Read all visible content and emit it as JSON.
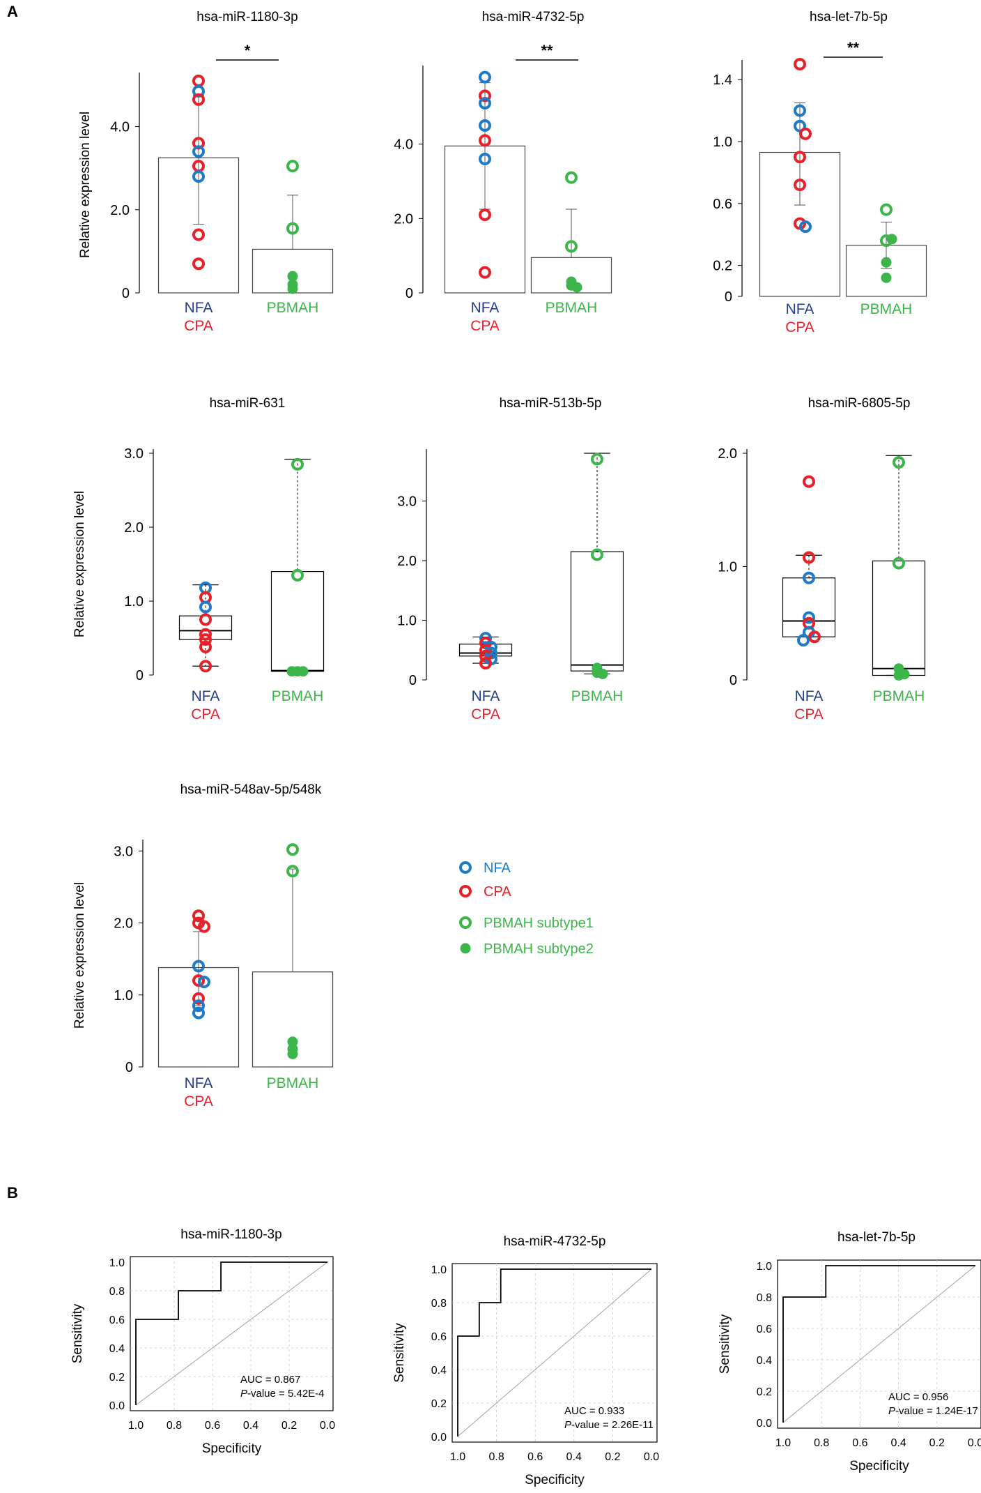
{
  "panels": {
    "A": "A",
    "B": "B"
  },
  "colors": {
    "nfa": "#1f7bc8",
    "cpa": "#e8202a",
    "pbmah": "#3cb54a",
    "group_nfa_text": "#233d8c",
    "axis": "#000000",
    "box_stroke": "#444444",
    "grid": "#c8c8c8"
  },
  "groups": {
    "nfa": "NFA",
    "cpa": "CPA",
    "pbmah": "PBMAH"
  },
  "legend": {
    "nfa": "NFA",
    "cpa": "CPA",
    "sub1": "PBMAH subtype1",
    "sub2": "PBMAH subtype2"
  },
  "chart_data": [
    {
      "id": "bar1",
      "type": "bar",
      "title": "hsa-miR-1180-3p",
      "ylabel": "Relative expression level",
      "ylim": [
        0,
        5.2
      ],
      "yticks": [
        [
          0,
          "0"
        ],
        [
          2,
          "2.0"
        ],
        [
          4,
          "4.0"
        ]
      ],
      "significance": "*",
      "categories": [
        "NFA/CPA",
        "PBMAH"
      ],
      "values": [
        3.25,
        1.05
      ],
      "error_upper": [
        4.75,
        2.35
      ],
      "error_lower": [
        1.65,
        null
      ],
      "points": [
        {
          "g": 0,
          "y": 5.1,
          "t": "cpa"
        },
        {
          "g": 0,
          "y": 4.85,
          "t": "nfa"
        },
        {
          "g": 0,
          "y": 4.65,
          "t": "cpa"
        },
        {
          "g": 0,
          "y": 3.6,
          "t": "cpa"
        },
        {
          "g": 0,
          "y": 3.4,
          "t": "nfa"
        },
        {
          "g": 0,
          "y": 3.05,
          "t": "cpa"
        },
        {
          "g": 0,
          "y": 2.8,
          "t": "nfa"
        },
        {
          "g": 0,
          "y": 1.4,
          "t": "cpa"
        },
        {
          "g": 0,
          "y": 0.7,
          "t": "cpa"
        },
        {
          "g": 1,
          "y": 3.05,
          "t": "sub1"
        },
        {
          "g": 1,
          "y": 1.55,
          "t": "sub1"
        },
        {
          "g": 1,
          "y": 0.4,
          "t": "sub2"
        },
        {
          "g": 1,
          "y": 0.2,
          "t": "sub2"
        },
        {
          "g": 1,
          "y": 0.1,
          "t": "sub2"
        }
      ]
    },
    {
      "id": "bar2",
      "type": "bar",
      "title": "hsa-miR-4732-5p",
      "ylabel": "",
      "ylim": [
        0,
        6.0
      ],
      "yticks": [
        [
          0,
          "0"
        ],
        [
          2,
          "2.0"
        ],
        [
          4,
          "4.0"
        ]
      ],
      "significance": "**",
      "categories": [
        "NFA/CPA",
        "PBMAH"
      ],
      "values": [
        3.95,
        0.95
      ],
      "error_upper": [
        5.65,
        2.25
      ],
      "error_lower": [
        2.25,
        null
      ],
      "points": [
        {
          "g": 0,
          "y": 5.8,
          "t": "nfa"
        },
        {
          "g": 0,
          "y": 5.3,
          "t": "cpa"
        },
        {
          "g": 0,
          "y": 5.1,
          "t": "nfa"
        },
        {
          "g": 0,
          "y": 4.5,
          "t": "nfa"
        },
        {
          "g": 0,
          "y": 4.1,
          "t": "cpa"
        },
        {
          "g": 0,
          "y": 3.6,
          "t": "nfa"
        },
        {
          "g": 0,
          "y": 2.1,
          "t": "cpa"
        },
        {
          "g": 0,
          "y": 0.55,
          "t": "cpa"
        },
        {
          "g": 1,
          "y": 3.1,
          "t": "sub1"
        },
        {
          "g": 1,
          "y": 1.25,
          "t": "sub1"
        },
        {
          "g": 1,
          "y": 0.3,
          "t": "sub2"
        },
        {
          "g": 1,
          "y": 0.2,
          "t": "sub2"
        },
        {
          "g": 1,
          "y": 0.15,
          "t": "sub2"
        }
      ]
    },
    {
      "id": "bar3",
      "type": "bar",
      "title": "hsa-let-7b-5p",
      "ylabel": "",
      "ylim": [
        0,
        1.5
      ],
      "yticks": [
        [
          0,
          "0"
        ],
        [
          0.2,
          "0.2"
        ],
        [
          0.6,
          "0.6"
        ],
        [
          1.0,
          "1.0"
        ],
        [
          1.4,
          "1.4"
        ]
      ],
      "significance": "**",
      "categories": [
        "NFA/CPA",
        "PBMAH"
      ],
      "values": [
        0.93,
        0.33
      ],
      "error_upper": [
        1.25,
        0.48
      ],
      "error_lower": [
        0.59,
        0.18
      ],
      "points": [
        {
          "g": 0,
          "y": 1.5,
          "t": "cpa"
        },
        {
          "g": 0,
          "y": 1.2,
          "t": "nfa"
        },
        {
          "g": 0,
          "y": 1.1,
          "t": "nfa"
        },
        {
          "g": 0,
          "y": 1.05,
          "t": "cpa"
        },
        {
          "g": 0,
          "y": 0.9,
          "t": "cpa"
        },
        {
          "g": 0,
          "y": 0.72,
          "t": "cpa"
        },
        {
          "g": 0,
          "y": 0.47,
          "t": "cpa"
        },
        {
          "g": 0,
          "y": 0.45,
          "t": "nfa"
        },
        {
          "g": 1,
          "y": 0.56,
          "t": "sub1"
        },
        {
          "g": 1,
          "y": 0.36,
          "t": "sub1"
        },
        {
          "g": 1,
          "y": 0.37,
          "t": "sub2"
        },
        {
          "g": 1,
          "y": 0.22,
          "t": "sub2"
        },
        {
          "g": 1,
          "y": 0.12,
          "t": "sub2"
        }
      ]
    },
    {
      "id": "box1",
      "type": "box",
      "title": "hsa-miR-631",
      "ylabel": "Relative expression level",
      "ylim": [
        0,
        3.0
      ],
      "yticks": [
        [
          0,
          "0"
        ],
        [
          1,
          "1.0"
        ],
        [
          2,
          "2.0"
        ],
        [
          3,
          "3.0"
        ]
      ],
      "boxes": [
        {
          "whislo": 0.12,
          "q1": 0.48,
          "med": 0.6,
          "q3": 0.8,
          "whishi": 1.22
        },
        {
          "whislo": 0.05,
          "q1": 0.05,
          "med": 0.06,
          "q3": 1.4,
          "whishi": 2.92
        }
      ],
      "points": [
        {
          "g": 0,
          "y": 1.18,
          "t": "nfa"
        },
        {
          "g": 0,
          "y": 1.05,
          "t": "cpa"
        },
        {
          "g": 0,
          "y": 0.92,
          "t": "nfa"
        },
        {
          "g": 0,
          "y": 0.75,
          "t": "cpa"
        },
        {
          "g": 0,
          "y": 0.55,
          "t": "cpa"
        },
        {
          "g": 0,
          "y": 0.48,
          "t": "cpa"
        },
        {
          "g": 0,
          "y": 0.38,
          "t": "cpa"
        },
        {
          "g": 0,
          "y": 0.12,
          "t": "cpa"
        },
        {
          "g": 1,
          "y": 2.85,
          "t": "sub1"
        },
        {
          "g": 1,
          "y": 1.35,
          "t": "sub1"
        },
        {
          "g": 1,
          "y": 0.05,
          "t": "sub2"
        },
        {
          "g": 1,
          "y": 0.05,
          "t": "sub2"
        },
        {
          "g": 1,
          "y": 0.05,
          "t": "sub2"
        }
      ]
    },
    {
      "id": "box2",
      "type": "box",
      "title": "hsa-miR-513b-5p",
      "ylabel": "",
      "ylim": [
        0,
        3.8
      ],
      "yticks": [
        [
          0,
          "0"
        ],
        [
          1,
          "1.0"
        ],
        [
          2,
          "2.0"
        ],
        [
          3,
          "3.0"
        ]
      ],
      "boxes": [
        {
          "whislo": 0.28,
          "q1": 0.4,
          "med": 0.45,
          "q3": 0.6,
          "whishi": 0.72
        },
        {
          "whislo": 0.1,
          "q1": 0.15,
          "med": 0.25,
          "q3": 2.15,
          "whishi": 3.8
        }
      ],
      "points": [
        {
          "g": 0,
          "y": 0.7,
          "t": "nfa"
        },
        {
          "g": 0,
          "y": 0.62,
          "t": "cpa"
        },
        {
          "g": 0,
          "y": 0.55,
          "t": "nfa"
        },
        {
          "g": 0,
          "y": 0.5,
          "t": "cpa"
        },
        {
          "g": 0,
          "y": 0.45,
          "t": "nfa"
        },
        {
          "g": 0,
          "y": 0.4,
          "t": "cpa"
        },
        {
          "g": 0,
          "y": 0.35,
          "t": "nfa"
        },
        {
          "g": 0,
          "y": 0.28,
          "t": "cpa"
        },
        {
          "g": 1,
          "y": 3.7,
          "t": "sub1"
        },
        {
          "g": 1,
          "y": 2.1,
          "t": "sub1"
        },
        {
          "g": 1,
          "y": 0.2,
          "t": "sub2"
        },
        {
          "g": 1,
          "y": 0.12,
          "t": "sub2"
        },
        {
          "g": 1,
          "y": 0.1,
          "t": "sub2"
        }
      ]
    },
    {
      "id": "box3",
      "type": "box",
      "title": "hsa-miR-6805-5p",
      "ylabel": "",
      "ylim": [
        0,
        2.0
      ],
      "yticks": [
        [
          0,
          "0"
        ],
        [
          1,
          "1.0"
        ],
        [
          2,
          "2.0"
        ]
      ],
      "boxes": [
        {
          "whislo": 0.38,
          "q1": 0.38,
          "med": 0.52,
          "q3": 0.9,
          "whishi": 1.1
        },
        {
          "whislo": 0.04,
          "q1": 0.04,
          "med": 0.1,
          "q3": 1.05,
          "whishi": 1.98
        }
      ],
      "points": [
        {
          "g": 0,
          "y": 1.75,
          "t": "cpa"
        },
        {
          "g": 0,
          "y": 1.08,
          "t": "cpa"
        },
        {
          "g": 0,
          "y": 0.9,
          "t": "nfa"
        },
        {
          "g": 0,
          "y": 0.55,
          "t": "nfa"
        },
        {
          "g": 0,
          "y": 0.5,
          "t": "cpa"
        },
        {
          "g": 0,
          "y": 0.42,
          "t": "nfa"
        },
        {
          "g": 0,
          "y": 0.38,
          "t": "cpa"
        },
        {
          "g": 0,
          "y": 0.35,
          "t": "nfa"
        },
        {
          "g": 1,
          "y": 1.92,
          "t": "sub1"
        },
        {
          "g": 1,
          "y": 1.03,
          "t": "sub1"
        },
        {
          "g": 1,
          "y": 0.1,
          "t": "sub2"
        },
        {
          "g": 1,
          "y": 0.05,
          "t": "sub2"
        },
        {
          "g": 1,
          "y": 0.04,
          "t": "sub2"
        }
      ]
    },
    {
      "id": "bar4",
      "type": "bar",
      "title": "hsa-miR-548av-5p/548k",
      "ylabel": "Relative expression level",
      "ylim": [
        0,
        3.1
      ],
      "yticks": [
        [
          0,
          "0"
        ],
        [
          1,
          "1.0"
        ],
        [
          2,
          "2.0"
        ],
        [
          3,
          "3.0"
        ]
      ],
      "significance": "",
      "categories": [
        "NFA/CPA",
        "PBMAH"
      ],
      "values": [
        1.38,
        1.32
      ],
      "error_upper": [
        1.88,
        2.75
      ],
      "error_lower": [
        0.85,
        null
      ],
      "points": [
        {
          "g": 0,
          "y": 2.1,
          "t": "cpa"
        },
        {
          "g": 0,
          "y": 2.0,
          "t": "cpa"
        },
        {
          "g": 0,
          "y": 1.95,
          "t": "cpa"
        },
        {
          "g": 0,
          "y": 1.4,
          "t": "nfa"
        },
        {
          "g": 0,
          "y": 1.2,
          "t": "cpa"
        },
        {
          "g": 0,
          "y": 1.18,
          "t": "nfa"
        },
        {
          "g": 0,
          "y": 0.95,
          "t": "cpa"
        },
        {
          "g": 0,
          "y": 0.85,
          "t": "nfa"
        },
        {
          "g": 0,
          "y": 0.75,
          "t": "nfa"
        },
        {
          "g": 1,
          "y": 3.02,
          "t": "sub1"
        },
        {
          "g": 1,
          "y": 2.72,
          "t": "sub1"
        },
        {
          "g": 1,
          "y": 0.35,
          "t": "sub2"
        },
        {
          "g": 1,
          "y": 0.25,
          "t": "sub2"
        },
        {
          "g": 1,
          "y": 0.18,
          "t": "sub2"
        }
      ]
    },
    {
      "id": "roc1",
      "type": "line",
      "title": "hsa-miR-1180-3p",
      "xlabel": "Specificity",
      "ylabel": "Sensitivity",
      "xlim": [
        1.0,
        0.0
      ],
      "ylim": [
        0.0,
        1.0
      ],
      "x": [
        1.0,
        1.0,
        0.778,
        0.778,
        0.556,
        0.556,
        0.0
      ],
      "y": [
        0.0,
        0.6,
        0.6,
        0.8,
        0.8,
        1.0,
        1.0
      ],
      "auc_text": "AUC = 0.867",
      "p_label": "P",
      "p_rest": "-value = 5.42E-4"
    },
    {
      "id": "roc2",
      "type": "line",
      "title": "hsa-miR-4732-5p",
      "xlabel": "Specificity",
      "ylabel": "Sensitivity",
      "xlim": [
        1.0,
        0.0
      ],
      "ylim": [
        0.0,
        1.0
      ],
      "x": [
        1.0,
        1.0,
        0.889,
        0.889,
        0.778,
        0.778,
        0.0
      ],
      "y": [
        0.0,
        0.6,
        0.6,
        0.8,
        0.8,
        1.0,
        1.0
      ],
      "auc_text": "AUC = 0.933",
      "p_label": "P",
      "p_rest": "-value = 2.26E-11"
    },
    {
      "id": "roc3",
      "type": "line",
      "title": "hsa-let-7b-5p",
      "xlabel": "Specificity",
      "ylabel": "Sensitivity",
      "xlim": [
        1.0,
        0.0
      ],
      "ylim": [
        0.0,
        1.0
      ],
      "x": [
        1.0,
        1.0,
        0.778,
        0.778,
        0.0
      ],
      "y": [
        0.0,
        0.8,
        0.8,
        1.0,
        1.0
      ],
      "auc_text": "AUC = 0.956",
      "p_label": "P",
      "p_rest": "-value = 1.24E-17"
    }
  ]
}
